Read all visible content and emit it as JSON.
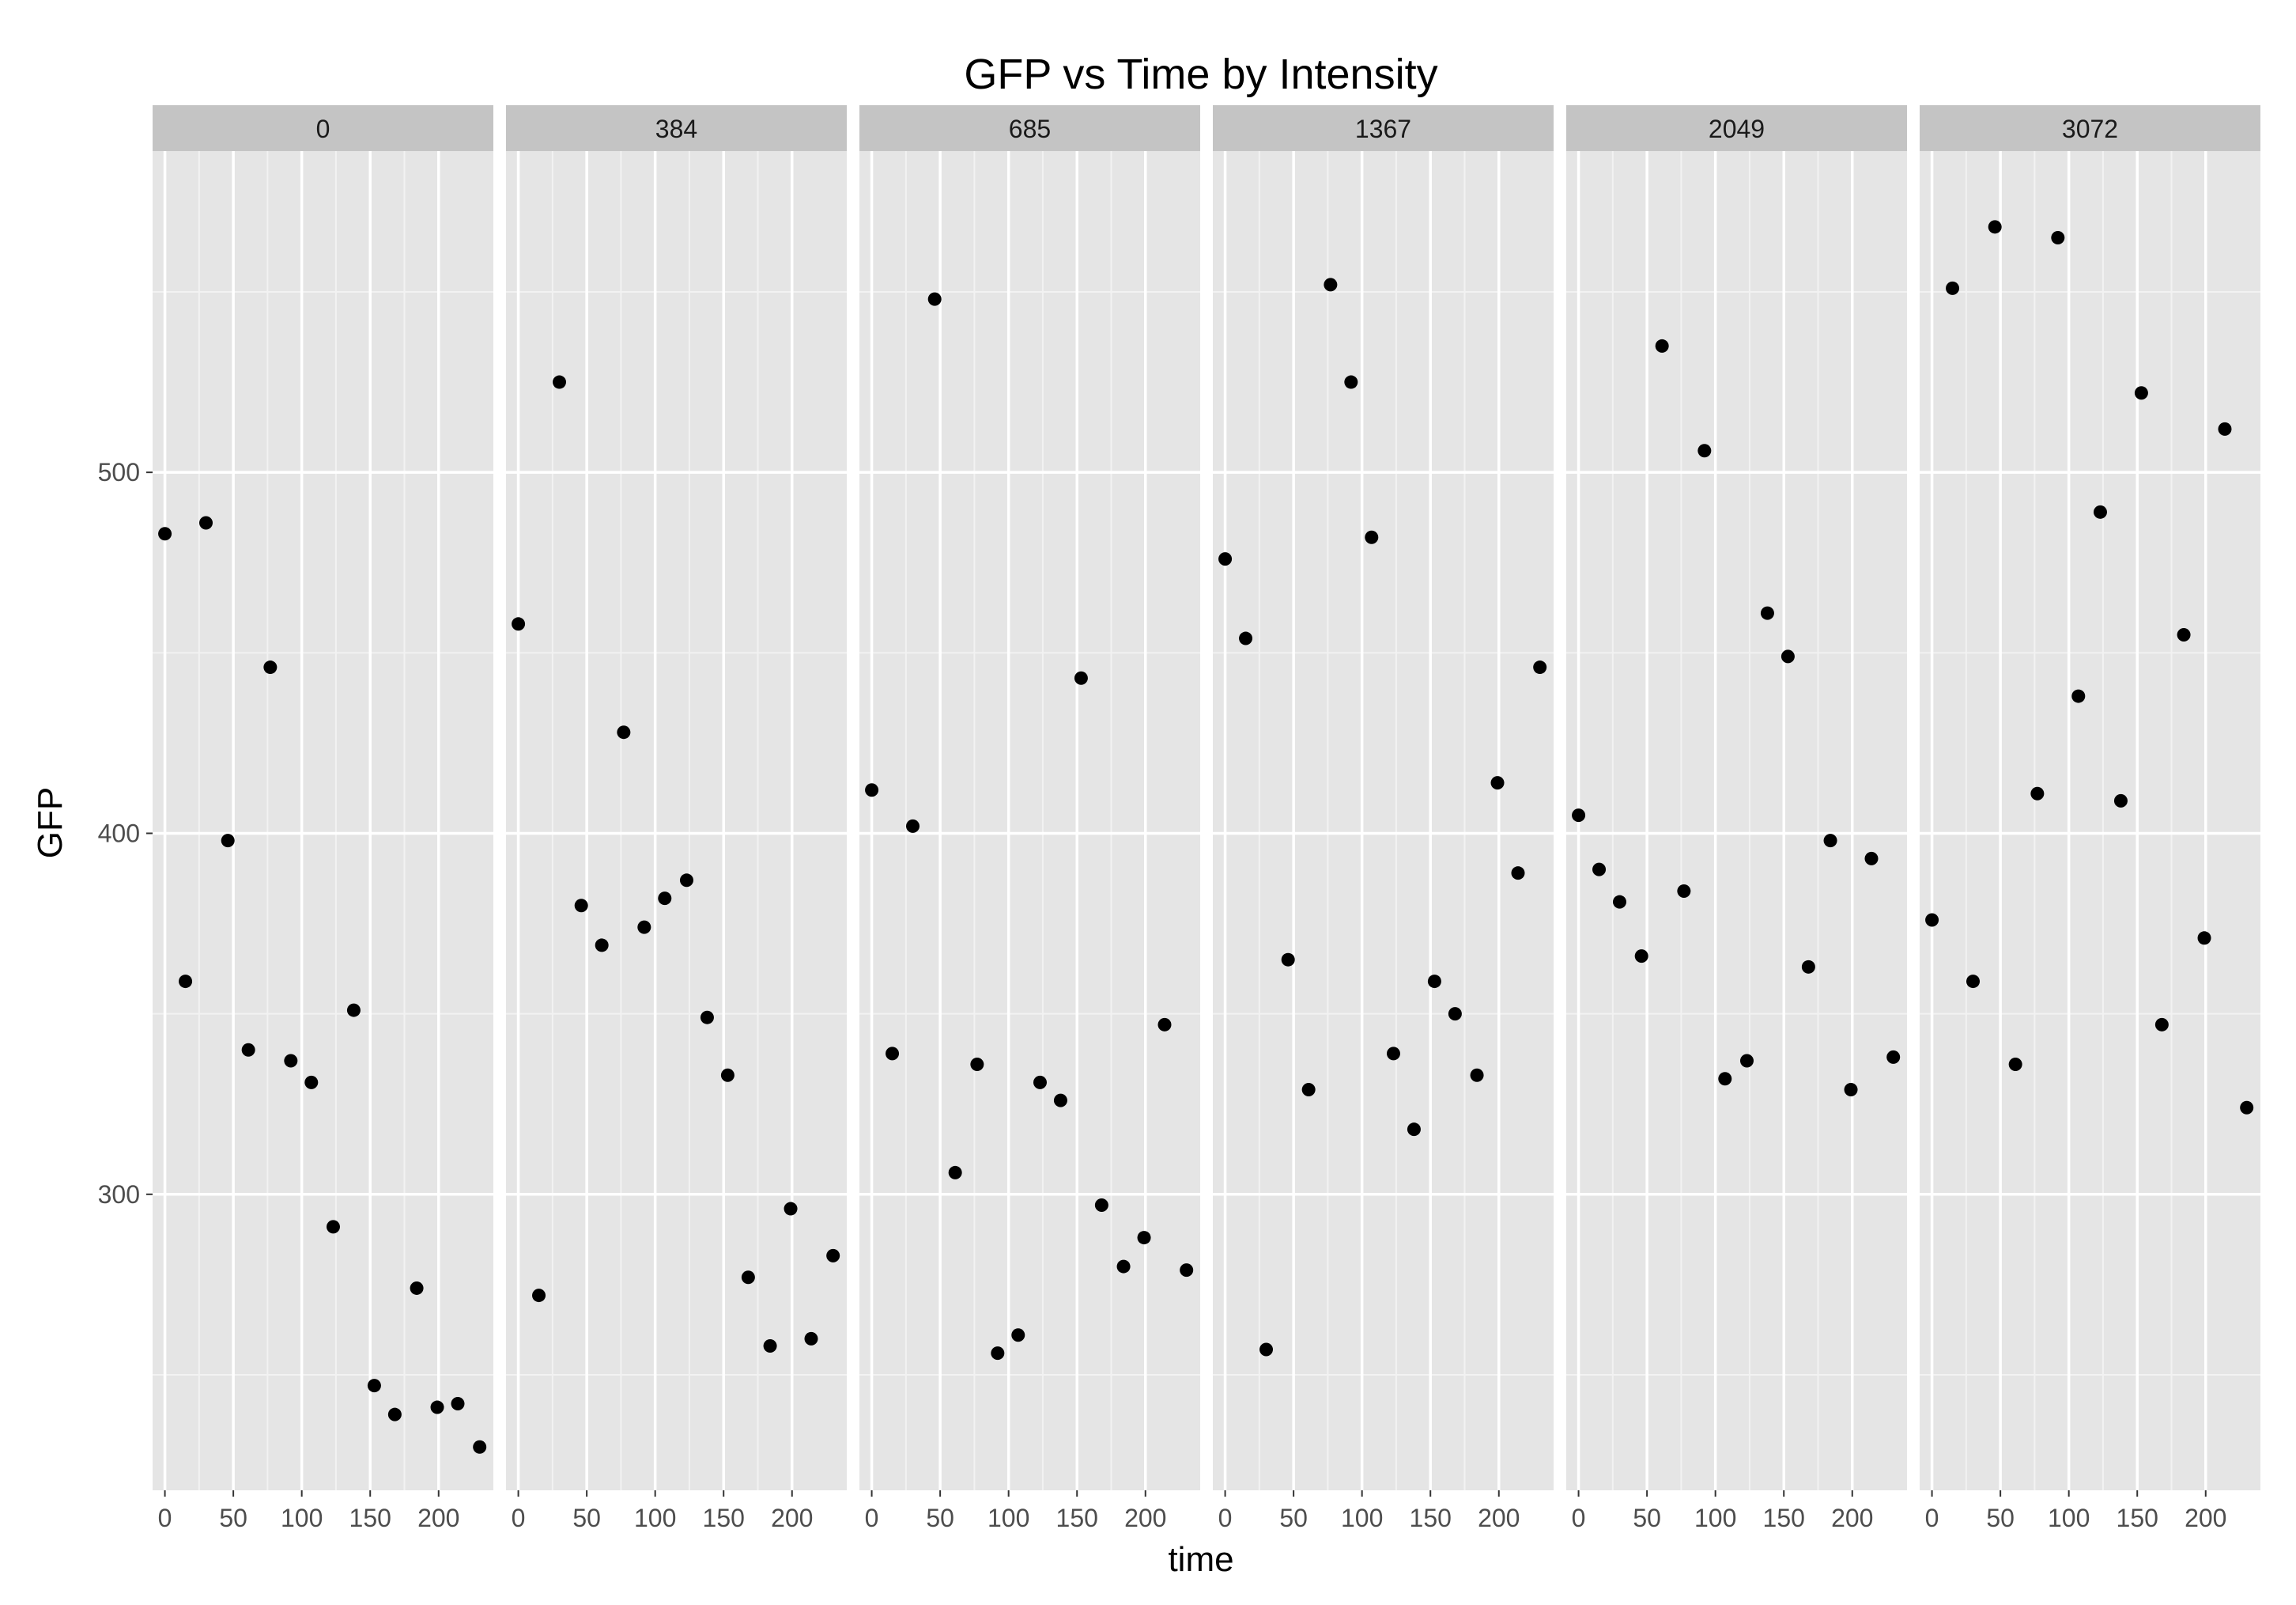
{
  "chart_data": {
    "type": "scatter",
    "title": "GFP vs Time by Intensity",
    "xlabel": "time",
    "ylabel": "GFP",
    "facet_variable_values_shown_as_strips": true,
    "xlim": [
      -9,
      240
    ],
    "ylim": [
      218,
      589
    ],
    "x_ticks": [
      0,
      50,
      100,
      150,
      200
    ],
    "y_ticks": [
      300,
      400,
      500
    ],
    "grid": true,
    "colors": {
      "panel_background": "#e5e5e5",
      "strip_background": "#c4c4c4",
      "grid": "#ffffff",
      "point": "#000000"
    },
    "panels": [
      {
        "strip": "0",
        "points": [
          {
            "x": 0,
            "y": 483
          },
          {
            "x": 15,
            "y": 359
          },
          {
            "x": 30,
            "y": 486
          },
          {
            "x": 46,
            "y": 398
          },
          {
            "x": 61,
            "y": 340
          },
          {
            "x": 77,
            "y": 446
          },
          {
            "x": 92,
            "y": 337
          },
          {
            "x": 107,
            "y": 331
          },
          {
            "x": 123,
            "y": 291
          },
          {
            "x": 138,
            "y": 351
          },
          {
            "x": 153,
            "y": 247
          },
          {
            "x": 168,
            "y": 239
          },
          {
            "x": 184,
            "y": 274
          },
          {
            "x": 199,
            "y": 241
          },
          {
            "x": 214,
            "y": 242
          },
          {
            "x": 230,
            "y": 230
          }
        ]
      },
      {
        "strip": "384",
        "points": [
          {
            "x": 0,
            "y": 458
          },
          {
            "x": 15,
            "y": 272
          },
          {
            "x": 30,
            "y": 525
          },
          {
            "x": 46,
            "y": 380
          },
          {
            "x": 61,
            "y": 369
          },
          {
            "x": 77,
            "y": 428
          },
          {
            "x": 92,
            "y": 374
          },
          {
            "x": 107,
            "y": 382
          },
          {
            "x": 123,
            "y": 387
          },
          {
            "x": 138,
            "y": 349
          },
          {
            "x": 153,
            "y": 333
          },
          {
            "x": 168,
            "y": 277
          },
          {
            "x": 184,
            "y": 258
          },
          {
            "x": 199,
            "y": 296
          },
          {
            "x": 214,
            "y": 260
          },
          {
            "x": 230,
            "y": 283
          }
        ]
      },
      {
        "strip": "685",
        "points": [
          {
            "x": 0,
            "y": 412
          },
          {
            "x": 15,
            "y": 339
          },
          {
            "x": 30,
            "y": 402
          },
          {
            "x": 46,
            "y": 548
          },
          {
            "x": 61,
            "y": 306
          },
          {
            "x": 77,
            "y": 336
          },
          {
            "x": 92,
            "y": 256
          },
          {
            "x": 107,
            "y": 261
          },
          {
            "x": 123,
            "y": 331
          },
          {
            "x": 138,
            "y": 326
          },
          {
            "x": 153,
            "y": 443
          },
          {
            "x": 168,
            "y": 297
          },
          {
            "x": 184,
            "y": 280
          },
          {
            "x": 199,
            "y": 288
          },
          {
            "x": 214,
            "y": 347
          },
          {
            "x": 230,
            "y": 279
          }
        ]
      },
      {
        "strip": "1367",
        "points": [
          {
            "x": 0,
            "y": 476
          },
          {
            "x": 15,
            "y": 454
          },
          {
            "x": 30,
            "y": 257
          },
          {
            "x": 46,
            "y": 365
          },
          {
            "x": 61,
            "y": 329
          },
          {
            "x": 77,
            "y": 552
          },
          {
            "x": 92,
            "y": 525
          },
          {
            "x": 107,
            "y": 482
          },
          {
            "x": 123,
            "y": 339
          },
          {
            "x": 138,
            "y": 318
          },
          {
            "x": 153,
            "y": 359
          },
          {
            "x": 168,
            "y": 350
          },
          {
            "x": 184,
            "y": 333
          },
          {
            "x": 199,
            "y": 414
          },
          {
            "x": 214,
            "y": 389
          },
          {
            "x": 230,
            "y": 446
          }
        ]
      },
      {
        "strip": "2049",
        "points": [
          {
            "x": 0,
            "y": 405
          },
          {
            "x": 15,
            "y": 390
          },
          {
            "x": 30,
            "y": 381
          },
          {
            "x": 46,
            "y": 366
          },
          {
            "x": 61,
            "y": 535
          },
          {
            "x": 77,
            "y": 384
          },
          {
            "x": 92,
            "y": 506
          },
          {
            "x": 107,
            "y": 332
          },
          {
            "x": 123,
            "y": 337
          },
          {
            "x": 138,
            "y": 461
          },
          {
            "x": 153,
            "y": 449
          },
          {
            "x": 168,
            "y": 363
          },
          {
            "x": 184,
            "y": 398
          },
          {
            "x": 199,
            "y": 329
          },
          {
            "x": 214,
            "y": 393
          },
          {
            "x": 230,
            "y": 338
          }
        ]
      },
      {
        "strip": "3072",
        "points": [
          {
            "x": 0,
            "y": 376
          },
          {
            "x": 15,
            "y": 551
          },
          {
            "x": 30,
            "y": 359
          },
          {
            "x": 46,
            "y": 568
          },
          {
            "x": 61,
            "y": 336
          },
          {
            "x": 77,
            "y": 411
          },
          {
            "x": 92,
            "y": 565
          },
          {
            "x": 107,
            "y": 438
          },
          {
            "x": 123,
            "y": 489
          },
          {
            "x": 138,
            "y": 409
          },
          {
            "x": 153,
            "y": 522
          },
          {
            "x": 168,
            "y": 347
          },
          {
            "x": 184,
            "y": 455
          },
          {
            "x": 199,
            "y": 371
          },
          {
            "x": 214,
            "y": 512
          },
          {
            "x": 230,
            "y": 324
          }
        ]
      }
    ]
  }
}
